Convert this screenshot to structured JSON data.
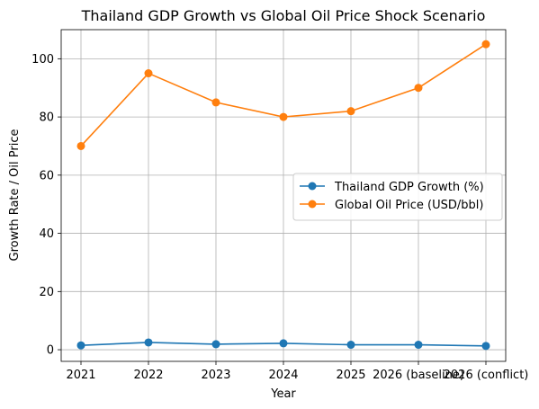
{
  "chart_data": {
    "type": "line",
    "title": "Thailand GDP Growth vs Global Oil Price Shock Scenario",
    "xlabel": "Year",
    "ylabel": "Growth Rate / Oil Price",
    "categories": [
      "2021",
      "2022",
      "2023",
      "2024",
      "2025",
      "2026 (baseline)",
      "2026 (conflict)"
    ],
    "ylim": [
      -4,
      110
    ],
    "yticks": [
      0,
      20,
      40,
      60,
      80,
      100
    ],
    "grid": true,
    "legend_position": "center-right",
    "series": [
      {
        "name": "Thailand GDP Growth (%)",
        "color": "#1f77b4",
        "marker": "circle",
        "values": [
          1.5,
          2.5,
          1.9,
          2.2,
          1.7,
          1.7,
          1.3
        ]
      },
      {
        "name": "Global Oil Price (USD/bbl)",
        "color": "#ff7f0e",
        "marker": "circle",
        "values": [
          70,
          95,
          85,
          80,
          82,
          90,
          105
        ]
      }
    ]
  }
}
